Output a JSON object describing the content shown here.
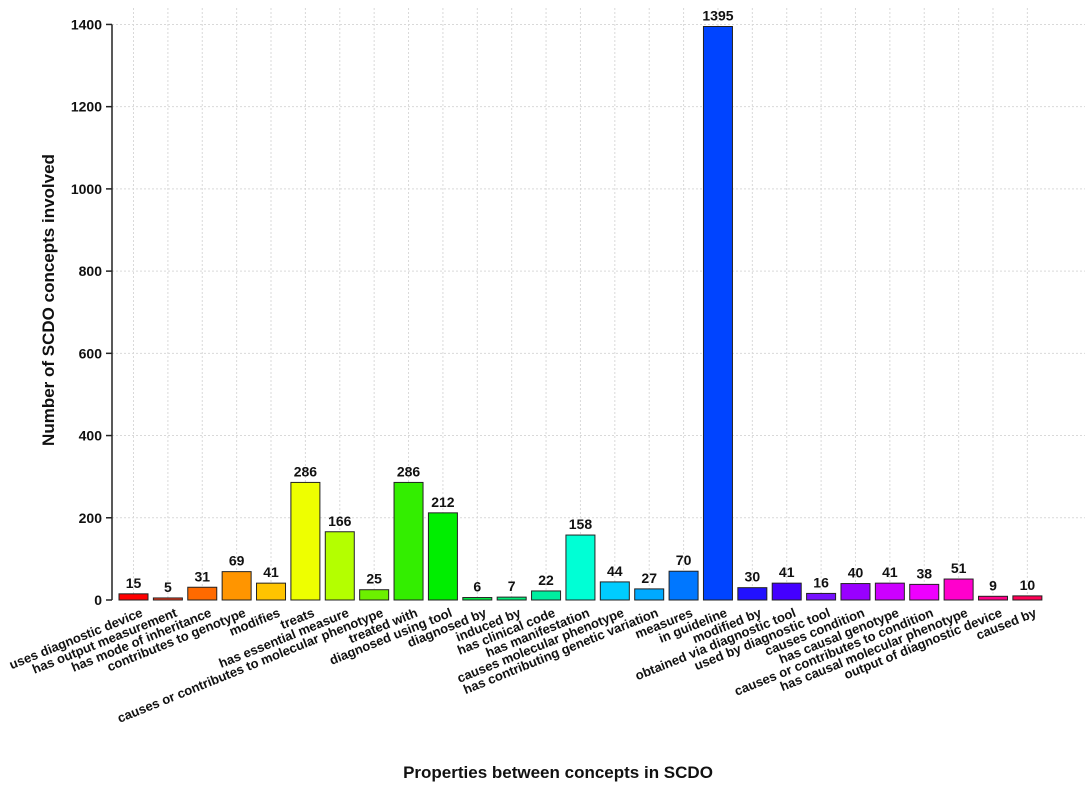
{
  "chart_data": {
    "type": "bar",
    "title": "",
    "xlabel": "Properties between concepts in SCDO",
    "ylabel": "Number of SCDO concepts involved",
    "ylim": [
      0,
      1440
    ],
    "yticks": [
      0,
      200,
      400,
      600,
      800,
      1000,
      1200,
      1400
    ],
    "grid": true,
    "legend": "none",
    "categories": [
      "uses diagnostic device",
      "has output measurement",
      "has mode of inheritance",
      "contributes to genotype",
      "modifies",
      "treats",
      "has essential measure",
      "causes or contributes to molecular phenotype",
      "treated with",
      "diagnosed using tool",
      "diagnosed by",
      "induced by",
      "has clinical code",
      "has manifestation",
      "causes molecular phenotype",
      "has contributing genetic variation",
      "measures",
      "in guideline",
      "modified by",
      "obtained via diagnostic tool",
      "used by diagnostic tool",
      "causes condition",
      "has causal genotype",
      "causes or contributes to condition",
      "has causal molecular phenotype",
      "output of diagnostic device",
      "caused by"
    ],
    "values": [
      15,
      5,
      31,
      69,
      41,
      286,
      166,
      25,
      286,
      212,
      6,
      7,
      22,
      158,
      44,
      27,
      70,
      1395,
      30,
      41,
      16,
      40,
      41,
      38,
      51,
      9,
      10
    ],
    "colors": [
      "#ff0000",
      "#ff3a1a",
      "#ff6a00",
      "#ff9500",
      "#ffc400",
      "#eeff00",
      "#b4ff00",
      "#6cf000",
      "#33ee00",
      "#00ee00",
      "#00ee44",
      "#00ee77",
      "#00eea0",
      "#00ffd5",
      "#00ccff",
      "#00aaff",
      "#0077ff",
      "#0044ff",
      "#2211ff",
      "#4400ff",
      "#7711ff",
      "#9900ff",
      "#cc00ff",
      "#ee00ff",
      "#ff00cc",
      "#ff0088",
      "#ff0055"
    ]
  }
}
